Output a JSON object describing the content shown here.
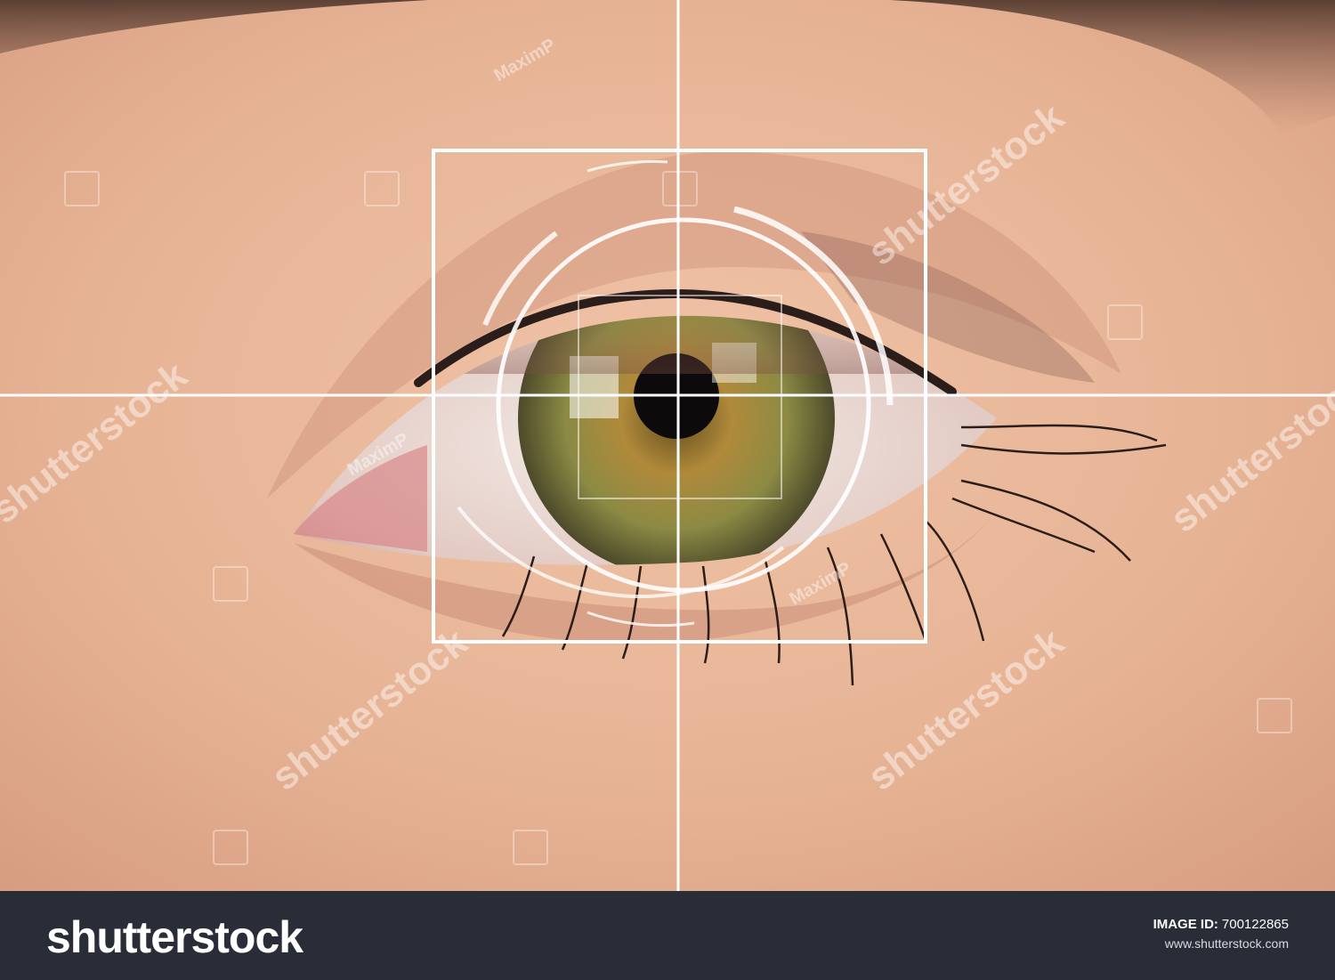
{
  "photo": {
    "subject": "eye-scan",
    "colors": {
      "skin": "#e8b79a",
      "skin_shadow": "#c98c73",
      "brow": "#5a4234",
      "iris": "#9a8a3c",
      "pupil": "#0c0a0a",
      "overlay": "#ffffff"
    },
    "watermarks": {
      "brand": "shutterstock",
      "author": "MaximP"
    }
  },
  "footer": {
    "logo_text": "shutterstock",
    "image_id_label": "IMAGE ID:",
    "image_id_value": "700122865",
    "website": "www.shutterstock.com"
  }
}
